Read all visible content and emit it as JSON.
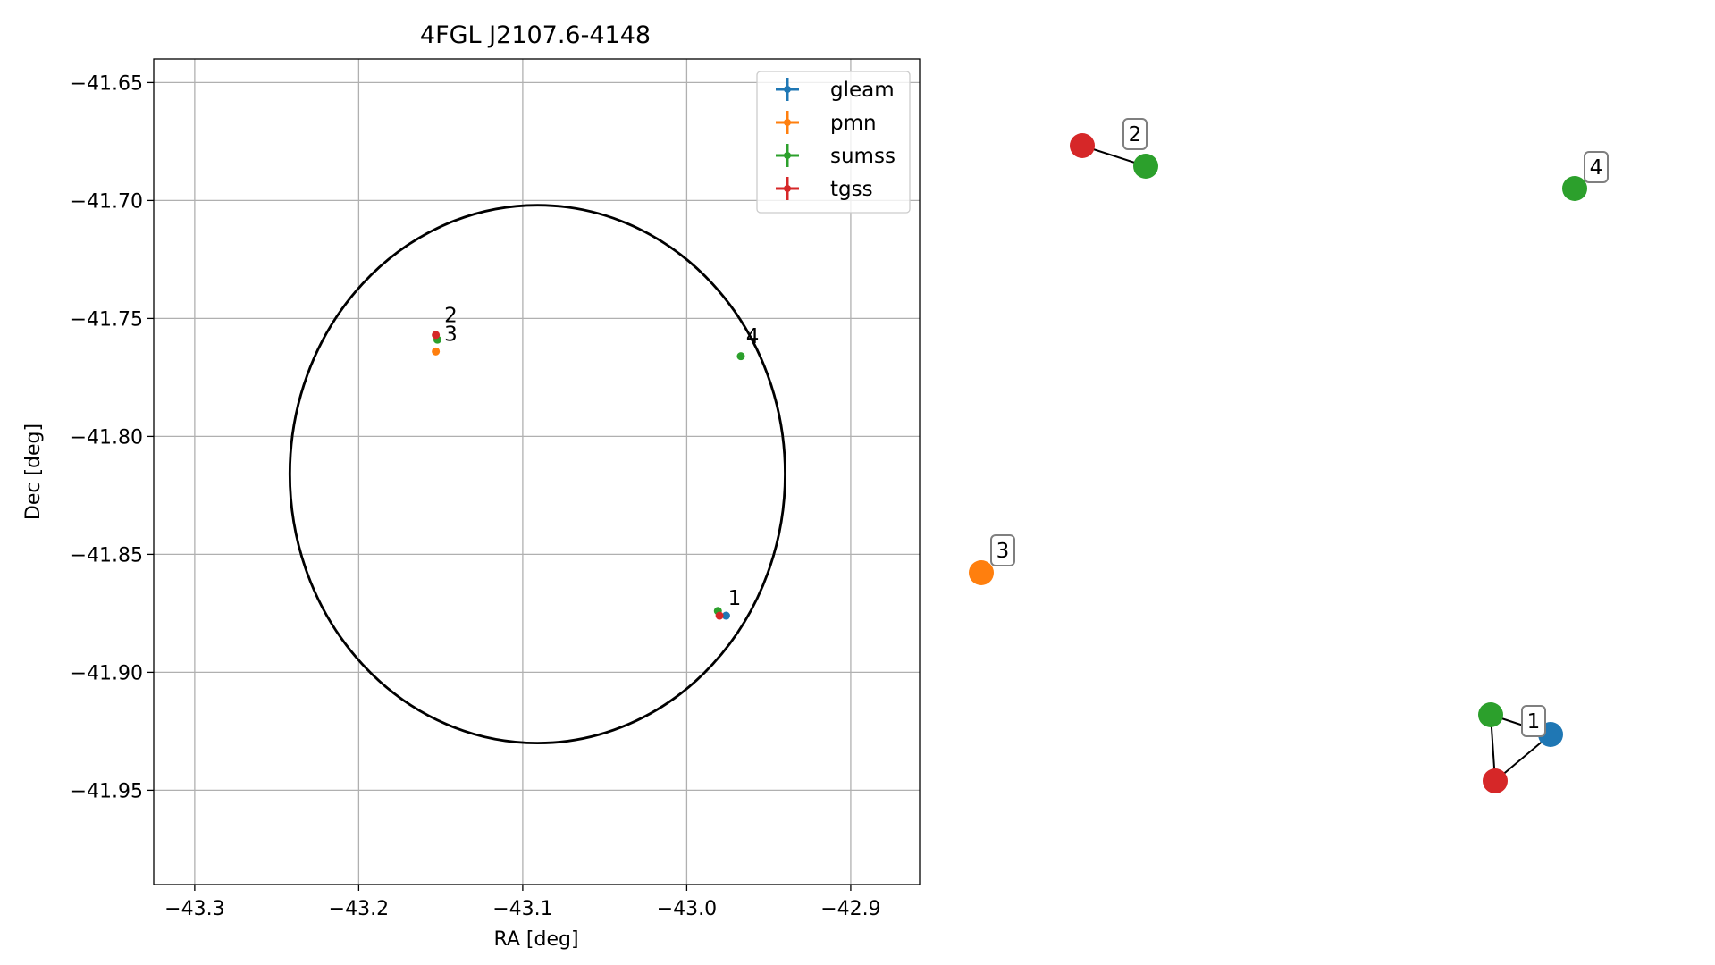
{
  "chart_data": [
    {
      "type": "scatter",
      "title": "4FGL J2107.6-4148",
      "xlabel": "RA [deg]",
      "ylabel": "Dec [deg]",
      "xlim": [
        -43.325,
        -42.858
      ],
      "ylim": [
        -41.99,
        -41.64
      ],
      "xticks": [
        -43.3,
        -43.2,
        -43.1,
        -43.0,
        -42.9
      ],
      "xtick_labels": [
        "−43.3",
        "−43.2",
        "−43.1",
        "−43.0",
        "−42.9"
      ],
      "yticks": [
        -41.65,
        -41.7,
        -41.75,
        -41.8,
        -41.85,
        -41.9,
        -41.95
      ],
      "ytick_labels": [
        "−41.65",
        "−41.70",
        "−41.75",
        "−41.80",
        "−41.85",
        "−41.90",
        "−41.95"
      ],
      "grid": true,
      "legend_position": "top-right",
      "series": [
        {
          "name": "gleam",
          "color": "#1f77b4",
          "points": [
            {
              "x": -42.976,
              "y": -41.876
            }
          ]
        },
        {
          "name": "pmn",
          "color": "#ff7f0e",
          "points": [
            {
              "x": -43.153,
              "y": -41.764
            }
          ]
        },
        {
          "name": "sumss",
          "color": "#2ca02c",
          "points": [
            {
              "x": -42.981,
              "y": -41.874
            },
            {
              "x": -43.152,
              "y": -41.759
            },
            {
              "x": -42.967,
              "y": -41.766
            }
          ]
        },
        {
          "name": "tgss",
          "color": "#d62728",
          "points": [
            {
              "x": -42.98,
              "y": -41.876
            },
            {
              "x": -43.153,
              "y": -41.757
            }
          ]
        }
      ],
      "error_circle": {
        "center": {
          "x": -43.091,
          "y": -41.816
        },
        "semi_axis_ra": 0.151,
        "semi_axis_dec": 0.114
      },
      "group_labels": [
        {
          "text": "1",
          "x": -42.977,
          "y": -41.873
        },
        {
          "text": "2",
          "x": -43.15,
          "y": -41.753
        },
        {
          "text": "3",
          "x": -43.15,
          "y": -41.761
        },
        {
          "text": "4",
          "x": -42.966,
          "y": -41.762
        }
      ]
    },
    {
      "type": "network",
      "groups": [
        {
          "label": "1",
          "nodes": [
            {
              "catalog": "gleam",
              "color": "#1f77b4"
            },
            {
              "catalog": "sumss",
              "color": "#2ca02c"
            },
            {
              "catalog": "tgss",
              "color": "#d62728"
            }
          ]
        },
        {
          "label": "2",
          "nodes": [
            {
              "catalog": "tgss",
              "color": "#d62728"
            },
            {
              "catalog": "sumss",
              "color": "#2ca02c"
            }
          ]
        },
        {
          "label": "3",
          "nodes": [
            {
              "catalog": "pmn",
              "color": "#ff7f0e"
            }
          ]
        },
        {
          "label": "4",
          "nodes": [
            {
              "catalog": "sumss",
              "color": "#2ca02c"
            }
          ]
        }
      ],
      "edges": [
        {
          "group": "1",
          "from": 0,
          "to": 1
        },
        {
          "group": "1",
          "from": 1,
          "to": 2
        },
        {
          "group": "1",
          "from": 0,
          "to": 2
        },
        {
          "group": "2",
          "from": 0,
          "to": 1
        }
      ]
    }
  ]
}
